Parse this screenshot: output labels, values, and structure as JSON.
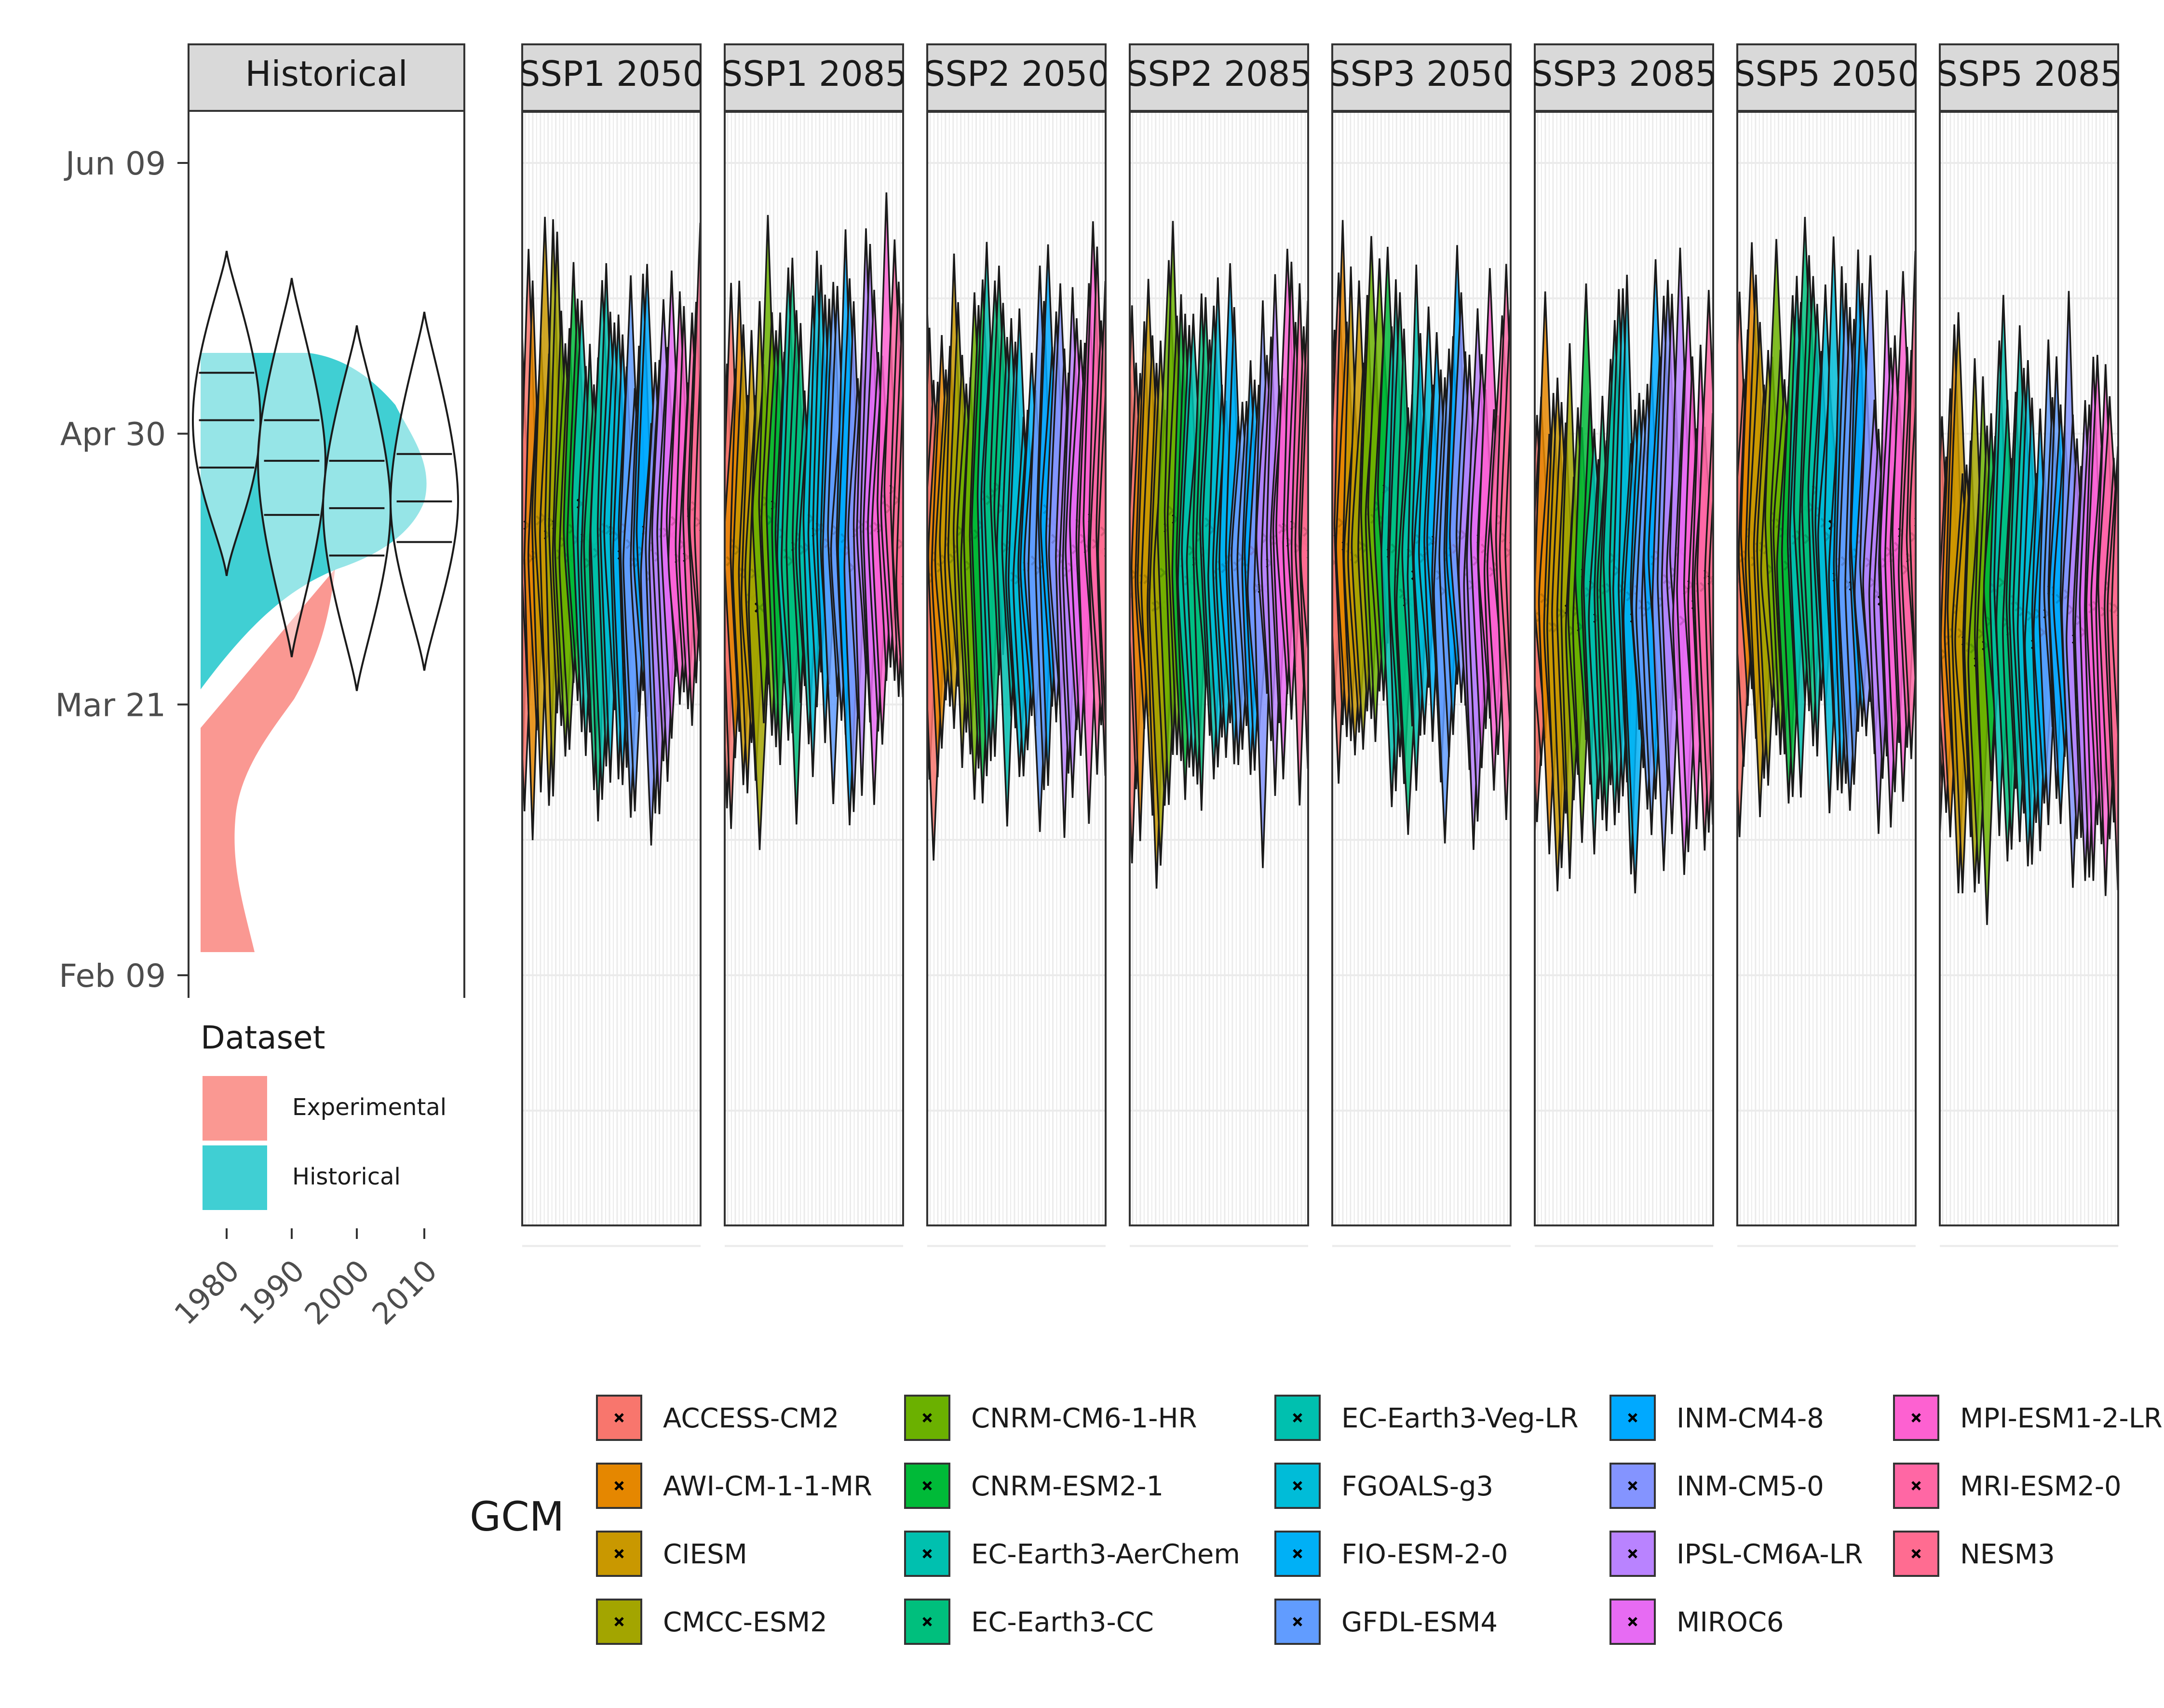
{
  "chart_data": {
    "type": "violin",
    "y_axis": {
      "ticks": [
        "Jun 09",
        "Apr 30",
        "Mar 21",
        "Feb 09"
      ],
      "tick_doy": [
        160,
        120,
        80,
        40
      ]
    },
    "historical_panel": {
      "strip": "Historical",
      "x_ticks": [
        "1980",
        "1990",
        "2000",
        "2010"
      ],
      "density_fill": {
        "Experimental": {
          "doy_min": 44,
          "doy_max": 83,
          "peak_doy": 73
        },
        "Historical": {
          "doy_min": 76,
          "doy_max": 131,
          "peak_doy": 125
        }
      },
      "violins": [
        {
          "decade": "1980",
          "min": 99,
          "q1": 115,
          "median": 122,
          "q3": 129,
          "max": 147
        },
        {
          "decade": "1990",
          "min": 87,
          "q1": 108,
          "median": 116,
          "q3": 122,
          "max": 143
        },
        {
          "decade": "2000",
          "min": 82,
          "q1": 102,
          "median": 109,
          "q3": 116,
          "max": 136
        },
        {
          "decade": "2010",
          "min": 85,
          "q1": 104,
          "median": 110,
          "q3": 117,
          "max": 138
        }
      ]
    },
    "facets": [
      "SSP1 2050",
      "SSP1 2085",
      "SSP2 2050",
      "SSP2 2085",
      "SSP3 2050",
      "SSP3 2085",
      "SSP5 2050",
      "SSP5 2085"
    ],
    "facet_centers_doy": [
      104,
      104,
      103,
      99,
      101,
      94,
      101,
      94
    ],
    "gcm_order": [
      "ACCESS-CM2",
      "AWI-CM-1-1-MR",
      "CIESM",
      "CMCC-ESM2",
      "CNRM-CM6-1-HR",
      "CNRM-ESM2-1",
      "EC-Earth3-AerChem",
      "EC-Earth3-CC",
      "EC-Earth3-Veg-LR",
      "FGOALS-g3",
      "FIO-ESM-2-0",
      "GFDL-ESM4",
      "INM-CM4-8",
      "INM-CM5-0",
      "IPSL-CM6A-LR",
      "MIROC6",
      "MPI-ESM1-2-LR",
      "MRI-ESM2-0",
      "NESM3"
    ],
    "gcm_colors": [
      "#F8766D",
      "#E58700",
      "#C99800",
      "#A3A500",
      "#6BB100",
      "#00BA38",
      "#00C0AF",
      "#00BF7D",
      "#00C0AF",
      "#00BCD8",
      "#00B0F6",
      "#619CFF",
      "#00A9FF",
      "#8494FF",
      "#B983FF",
      "#E76BF3",
      "#FD61D1",
      "#FF67A4",
      "#FF6C91"
    ],
    "gcm_means_doy": [
      [
        104,
        103,
        105,
        104,
        101,
        107,
        107,
        103,
        106,
        107,
        105,
        102,
        104,
        101,
        103,
        105,
        103,
        107,
        104
      ],
      [
        99,
        103,
        97,
        97,
        110,
        108,
        103,
        104,
        102,
        106,
        104,
        105,
        103,
        103,
        105,
        104,
        108,
        111,
        101
      ],
      [
        101,
        102,
        103,
        104,
        102,
        104,
        110,
        110,
        106,
        101,
        103,
        101,
        106,
        105,
        102,
        104,
        106,
        105,
        103
      ],
      [
        98,
        98,
        96,
        97,
        106,
        102,
        100,
        102,
        104,
        100,
        104,
        102,
        100,
        99,
        103,
        104,
        105,
        102,
        103
      ],
      [
        103,
        105,
        102,
        101,
        108,
        109,
        104,
        97,
        100,
        102,
        102,
        99,
        102,
        107,
        100,
        104,
        101,
        105,
        104
      ],
      [
        93,
        95,
        93,
        93,
        91,
        98,
        95,
        97,
        99,
        96,
        94,
        95,
        100,
        98,
        100,
        94,
        95,
        99,
        100
      ],
      [
        99,
        103,
        104,
        101,
        106,
        102,
        104,
        107,
        110,
        104,
        100,
        99,
        102,
        99,
        98,
        101,
        103,
        99,
        105
      ],
      [
        90,
        92,
        92,
        91,
        89,
        95,
        99,
        93,
        96,
        91,
        92,
        95,
        93,
        94,
        92,
        97,
        94,
        95,
        93
      ]
    ],
    "legend_dataset": {
      "title": "Dataset",
      "items": [
        {
          "label": "Experimental",
          "color": "#F8766D"
        },
        {
          "label": "Historical",
          "color": "#00BFC4"
        }
      ]
    },
    "legend_gcm": {
      "title": "GCM",
      "columns": [
        [
          "ACCESS-CM2",
          "AWI-CM-1-1-MR",
          "CIESM",
          "CMCC-ESM2"
        ],
        [
          "CNRM-CM6-1-HR",
          "CNRM-ESM2-1",
          "EC-Earth3-AerChem",
          "EC-Earth3-CC"
        ],
        [
          "EC-Earth3-Veg-LR",
          "FGOALS-g3",
          "FIO-ESM-2-0",
          "GFDL-ESM4"
        ],
        [
          "INM-CM4-8",
          "INM-CM5-0",
          "IPSL-CM6A-LR",
          "MIROC6"
        ],
        [
          "MPI-ESM1-2-LR",
          "MRI-ESM2-0",
          "NESM3"
        ]
      ]
    }
  }
}
